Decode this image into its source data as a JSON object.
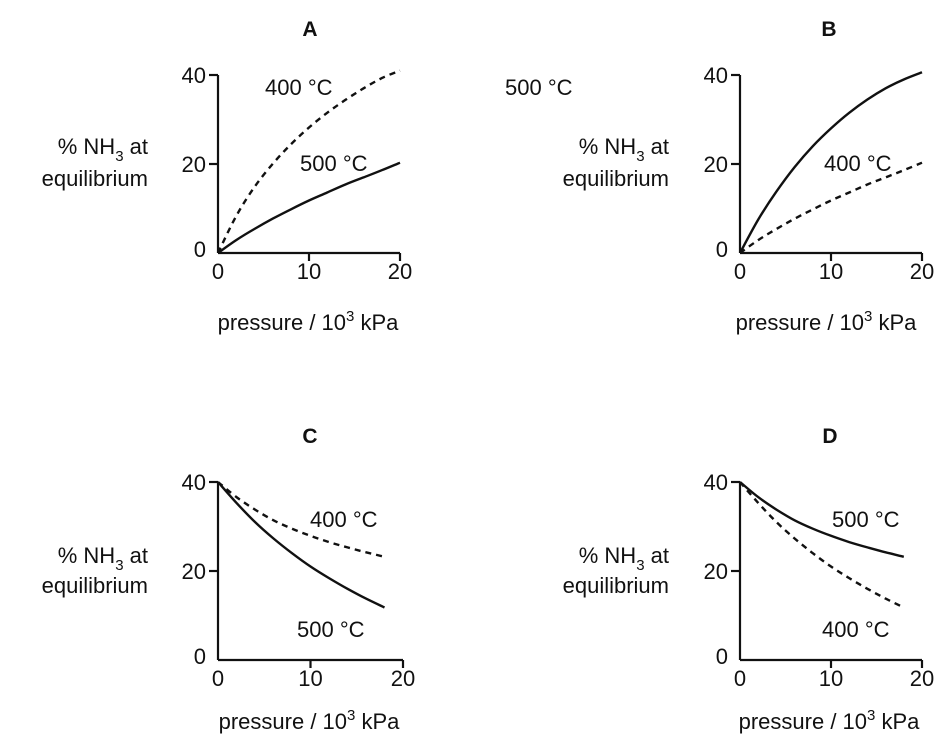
{
  "chart_data": [
    {
      "type": "line",
      "title": "A",
      "ylabel_prefix": "% NH",
      "ylabel_sub": "3",
      "ylabel_suffix": " at",
      "ylabel_line2": "equilibrium",
      "xlabel_prefix": "pressure / 10",
      "xlabel_sup": "3",
      "xlabel_suffix": " kPa",
      "xlim": [
        0,
        20
      ],
      "ylim": [
        0,
        40
      ],
      "x_ticks": [
        "0",
        "10",
        "20"
      ],
      "y_ticks": [
        "0",
        "20",
        "40"
      ],
      "series": [
        {
          "name": "400 °C",
          "style": "dashed",
          "x": [
            0,
            2,
            4,
            6,
            8,
            10,
            12,
            14,
            16,
            18,
            20
          ],
          "y": [
            0,
            8.3,
            14.8,
            20.0,
            24.4,
            28.2,
            31.5,
            34.4,
            37.0,
            39.3,
            41.0
          ]
        },
        {
          "name": "500 °C",
          "style": "solid",
          "x": [
            0,
            2,
            4,
            6,
            8,
            10,
            12,
            14,
            16,
            18,
            20
          ],
          "y": [
            0,
            2.9,
            5.4,
            7.7,
            9.8,
            11.8,
            13.6,
            15.4,
            17.0,
            18.6,
            20.3
          ]
        }
      ]
    },
    {
      "type": "line",
      "title": "B",
      "ylabel_prefix": "% NH",
      "ylabel_sub": "3",
      "ylabel_suffix": " at",
      "ylabel_line2": "equilibrium",
      "xlabel_prefix": "pressure / 10",
      "xlabel_sup": "3",
      "xlabel_suffix": " kPa",
      "xlim": [
        0,
        20
      ],
      "ylim": [
        0,
        40
      ],
      "x_ticks": [
        "0",
        "10",
        "20"
      ],
      "y_ticks": [
        "0",
        "20",
        "40"
      ],
      "series": [
        {
          "name": "500 °C",
          "style": "solid",
          "x": [
            0,
            2,
            4,
            6,
            8,
            10,
            12,
            14,
            16,
            18,
            20
          ],
          "y": [
            0,
            7.5,
            13.8,
            19.3,
            24.0,
            28.0,
            31.5,
            34.5,
            37.0,
            39.0,
            40.6
          ]
        },
        {
          "name": "400 °C",
          "style": "dashed",
          "x": [
            0,
            2,
            4,
            6,
            8,
            10,
            12,
            14,
            16,
            18,
            20
          ],
          "y": [
            0,
            2.9,
            5.4,
            7.7,
            9.8,
            11.8,
            13.6,
            15.4,
            17.0,
            18.6,
            20.3
          ]
        }
      ]
    },
    {
      "type": "line",
      "title": "C",
      "ylabel_prefix": "% NH",
      "ylabel_sub": "3",
      "ylabel_suffix": " at",
      "ylabel_line2": "equilibrium",
      "xlabel_prefix": "pressure / 10",
      "xlabel_sup": "3",
      "xlabel_suffix": " kPa",
      "xlim": [
        0,
        20
      ],
      "ylim": [
        0,
        40
      ],
      "x_ticks": [
        "0",
        "10",
        "20"
      ],
      "y_ticks": [
        "0",
        "20",
        "40"
      ],
      "series": [
        {
          "name": "400 °C",
          "style": "dashed",
          "x": [
            0,
            2,
            4,
            6,
            8,
            10,
            12,
            14,
            16,
            18
          ],
          "y": [
            40,
            36.6,
            33.8,
            31.4,
            29.5,
            27.9,
            26.5,
            25.3,
            24.2,
            23.2
          ]
        },
        {
          "name": "500 °C",
          "style": "solid",
          "x": [
            0,
            2,
            4,
            6,
            8,
            10,
            12,
            14,
            16,
            18
          ],
          "y": [
            40,
            35.3,
            31.0,
            27.3,
            24.0,
            21.0,
            18.4,
            16.0,
            13.8,
            11.8
          ]
        }
      ]
    },
    {
      "type": "line",
      "title": "D",
      "ylabel_prefix": "% NH",
      "ylabel_sub": "3",
      "ylabel_suffix": " at",
      "ylabel_line2": "equilibrium",
      "xlabel_prefix": "pressure / 10",
      "xlabel_sup": "3",
      "xlabel_suffix": " kPa",
      "xlim": [
        0,
        20
      ],
      "ylim": [
        0,
        40
      ],
      "x_ticks": [
        "0",
        "10",
        "20"
      ],
      "y_ticks": [
        "0",
        "20",
        "40"
      ],
      "series": [
        {
          "name": "500 °C",
          "style": "solid",
          "x": [
            0,
            2,
            4,
            6,
            8,
            10,
            12,
            14,
            16,
            18
          ],
          "y": [
            40,
            36.6,
            33.8,
            31.4,
            29.5,
            27.9,
            26.5,
            25.3,
            24.2,
            23.2
          ]
        },
        {
          "name": "400 °C",
          "style": "dashed",
          "x": [
            0,
            2,
            4,
            6,
            8,
            10,
            12,
            14,
            16,
            18
          ],
          "y": [
            40,
            35.3,
            31.0,
            27.3,
            24.0,
            21.0,
            18.4,
            16.0,
            13.8,
            11.8
          ]
        }
      ]
    }
  ]
}
